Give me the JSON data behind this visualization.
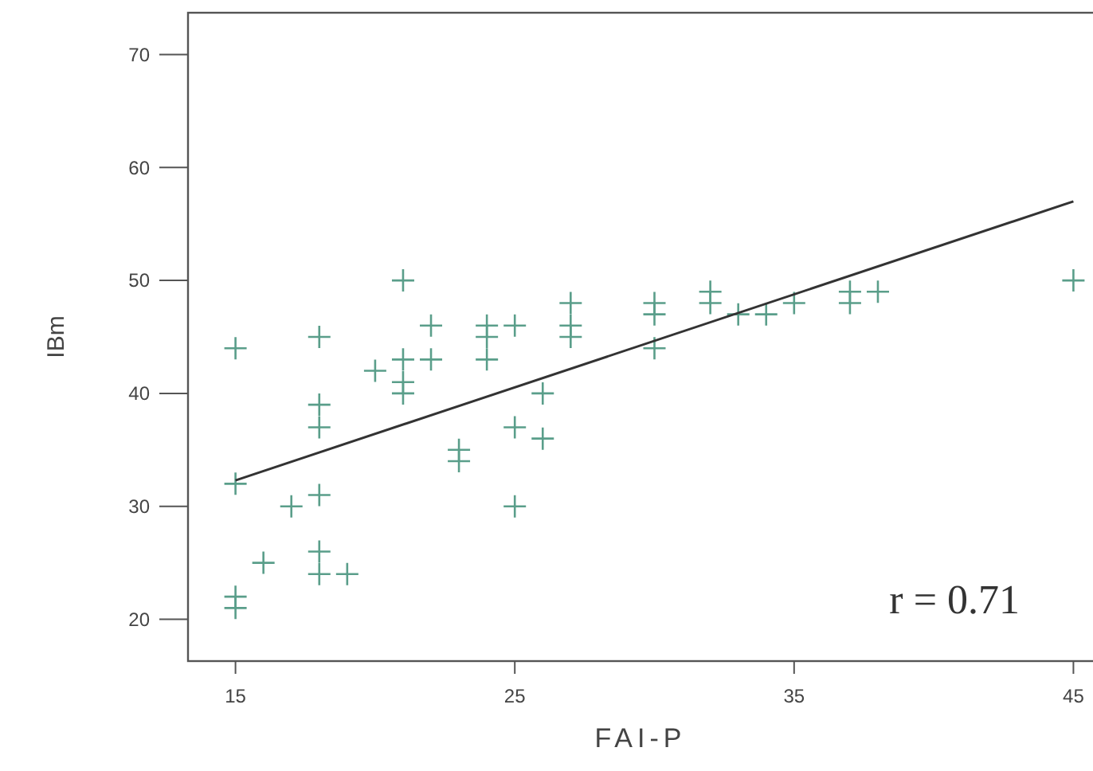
{
  "chart_data": {
    "type": "scatter",
    "xlabel": "FAI-P",
    "ylabel": "IBm",
    "xlim": [
      13.3,
      46.5
    ],
    "ylim": [
      16.3,
      73.7
    ],
    "xticks": [
      15,
      25,
      35,
      45
    ],
    "yticks": [
      20,
      30,
      40,
      50,
      60,
      70
    ],
    "grid": false,
    "annotations": [
      "r = 0.71"
    ],
    "series": [
      {
        "marker": "cross",
        "color": "#5a9e8a",
        "x": [
          15,
          15,
          15,
          15,
          16,
          17,
          18,
          18,
          18,
          18,
          18,
          18,
          19,
          20,
          21,
          21,
          21,
          21,
          22,
          22,
          23,
          23,
          24,
          24,
          24,
          25,
          25,
          25,
          26,
          26,
          27,
          27,
          27,
          30,
          30,
          30,
          32,
          32,
          33,
          34,
          35,
          37,
          37,
          38,
          45
        ],
        "values": [
          44,
          32,
          22,
          21,
          25,
          30,
          45,
          39,
          37,
          31,
          26,
          24,
          24,
          42,
          50,
          43,
          41,
          40,
          46,
          43,
          35,
          34,
          46,
          45,
          43,
          46,
          37,
          30,
          40,
          36,
          48,
          46,
          45,
          48,
          47,
          44,
          49,
          48,
          47,
          47,
          48,
          49,
          48,
          49,
          50
        ]
      },
      {
        "type": "line",
        "color": "#333333",
        "x": [
          15,
          45
        ],
        "values": [
          32.3,
          57
        ]
      }
    ]
  }
}
